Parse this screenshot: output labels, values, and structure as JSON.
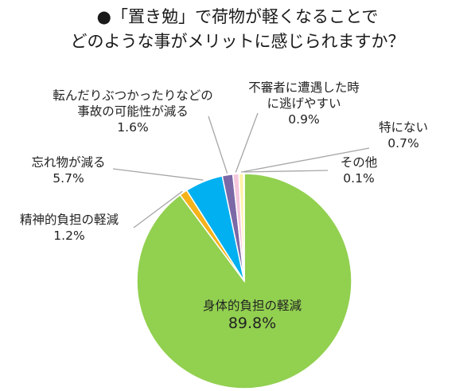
{
  "title": {
    "line1": "●「置き勉」で荷物が軽くなることで",
    "line2": "どのような事がメリットに感じられますか？"
  },
  "chart_data": {
    "type": "pie",
    "categories": [
      "身体的負担の軽減",
      "精神的負担の軽減",
      "忘れ物が減る",
      "転んだりぶつかったりなどの事故の可能性が減る",
      "不審者に遭遇した時に逃げやすい",
      "特にない",
      "その他"
    ],
    "values": [
      89.8,
      1.2,
      5.7,
      1.6,
      0.9,
      0.7,
      0.1
    ],
    "colors": [
      "#92d050",
      "#f5b21a",
      "#00b0f0",
      "#7b68a6",
      "#f4c6dc",
      "#fff2a8",
      "#d8e8b0"
    ],
    "data_labels": [
      {
        "lines": [
          "身体的負担の軽減",
          "89.8%"
        ]
      },
      {
        "lines": [
          "精神的負担の軽減",
          "1.2%"
        ]
      },
      {
        "lines": [
          "忘れ物が減る",
          "5.7%"
        ]
      },
      {
        "lines": [
          "転んだりぶつかったりなどの",
          "事故の可能性が減る",
          "1.6%"
        ]
      },
      {
        "lines": [
          "不審者に遭遇した時",
          "に逃げやすい",
          "0.9%"
        ]
      },
      {
        "lines": [
          "特にない",
          "0.7%"
        ]
      },
      {
        "lines": [
          "その他",
          "0.1%"
        ]
      }
    ],
    "start": "12 o'clock",
    "direction": "clockwise",
    "legend": "none"
  }
}
